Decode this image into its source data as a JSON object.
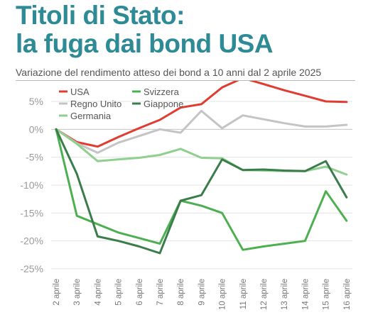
{
  "header": {
    "title_line1": "Titoli di Stato:",
    "title_line2": "la fuga dai bond USA",
    "subtitle": "Variazione del rendimento atteso dei bond a 10 anni dal 2 aprile 2025"
  },
  "chart_data": {
    "type": "line",
    "title": "Titoli di Stato: la fuga dai bond USA",
    "subtitle": "Variazione del rendimento atteso dei bond a 10 anni dal 2 aprile 2025",
    "xlabel": "",
    "ylabel": "",
    "x": [
      "2 aprile",
      "3 aprile",
      "4 aprile",
      "5 aprile",
      "6 aprile",
      "7 aprile",
      "8 aprile",
      "9 aprile",
      "10 aprile",
      "11 aprile",
      "12 aprile",
      "13 aprile",
      "14 aprile",
      "15 aprile",
      "16 aprile"
    ],
    "ylim": [
      -26,
      9
    ],
    "yticks": [
      5,
      0,
      -5,
      -10,
      -15,
      -20,
      -25
    ],
    "ytick_labels": [
      "5%",
      "0%",
      "-5%",
      "-10%",
      "-15%",
      "-20%",
      "-25%"
    ],
    "grid": true,
    "legend": "top-left",
    "series": [
      {
        "name": "USA",
        "color": "#e03c31",
        "values": [
          0,
          -2.3,
          -3.1,
          -1.4,
          0.2,
          1.7,
          3.9,
          4.5,
          7.5,
          9.2,
          8.1,
          7,
          6,
          5,
          4.9
        ]
      },
      {
        "name": "Regno Unito",
        "color": "#c4c4c4",
        "values": [
          0,
          -2.5,
          -4.2,
          -2.4,
          -1.2,
          0,
          -0.6,
          3.3,
          0.2,
          2.5,
          1.8,
          1.1,
          0.5,
          0.5,
          0.8
        ]
      },
      {
        "name": "Germania",
        "color": "#8fd08f",
        "values": [
          0,
          -2.6,
          -5.7,
          -5.4,
          -5.1,
          -4.6,
          -3.5,
          -5.1,
          -5.2,
          -7.3,
          -7.4,
          -7.5,
          -7.5,
          -6.7,
          -8.1
        ]
      },
      {
        "name": "Svizzera",
        "color": "#4caf50",
        "values": [
          0,
          -15.5,
          -17,
          -18.5,
          -19.5,
          -20.5,
          -12.8,
          -13.7,
          -15,
          -21.6,
          -21,
          -20.5,
          -20,
          -11.1,
          -16.4
        ]
      },
      {
        "name": "Giappone",
        "color": "#3a7d4a",
        "values": [
          0,
          -8,
          -19.2,
          -20,
          -21,
          -22.2,
          -12.8,
          -11.8,
          -5.4,
          -7.3,
          -7.2,
          -7.4,
          -7.5,
          -5.7,
          -12.2
        ]
      }
    ]
  }
}
